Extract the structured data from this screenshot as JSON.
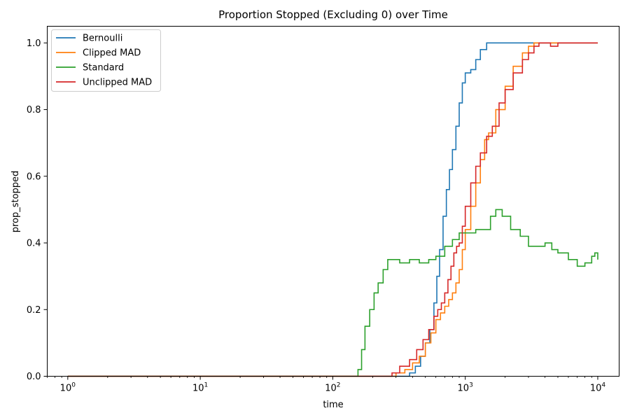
{
  "chart_data": {
    "type": "line",
    "title": "Proportion Stopped (Excluding 0) over Time",
    "xlabel": "time",
    "ylabel": "prop_stopped",
    "xscale": "log",
    "xlim": [
      0.7,
      14500
    ],
    "ylim": [
      0,
      1.05
    ],
    "x_ticks": [
      {
        "value": 1,
        "base": "10",
        "exp": "0"
      },
      {
        "value": 10,
        "base": "10",
        "exp": "1"
      },
      {
        "value": 100,
        "base": "10",
        "exp": "2"
      },
      {
        "value": 1000,
        "base": "10",
        "exp": "3"
      },
      {
        "value": 10000,
        "base": "10",
        "exp": "4"
      }
    ],
    "y_ticks": [
      "0.0",
      "0.2",
      "0.4",
      "0.6",
      "0.8",
      "1.0"
    ],
    "grid": false,
    "legend_position": "upper-left",
    "series": [
      {
        "name": "Bernoulli",
        "color": "#1f77b4",
        "points": [
          [
            1,
            0
          ],
          [
            350,
            0
          ],
          [
            380,
            0.01
          ],
          [
            420,
            0.03
          ],
          [
            460,
            0.06
          ],
          [
            500,
            0.1
          ],
          [
            540,
            0.14
          ],
          [
            580,
            0.22
          ],
          [
            610,
            0.3
          ],
          [
            640,
            0.38
          ],
          [
            680,
            0.48
          ],
          [
            720,
            0.56
          ],
          [
            760,
            0.62
          ],
          [
            800,
            0.68
          ],
          [
            850,
            0.75
          ],
          [
            900,
            0.82
          ],
          [
            950,
            0.88
          ],
          [
            1000,
            0.91
          ],
          [
            1100,
            0.92
          ],
          [
            1200,
            0.95
          ],
          [
            1300,
            0.98
          ],
          [
            1450,
            1.0
          ],
          [
            10000,
            1.0
          ]
        ]
      },
      {
        "name": "Clipped MAD",
        "color": "#ff7f0e",
        "points": [
          [
            1,
            0
          ],
          [
            270,
            0
          ],
          [
            300,
            0.01
          ],
          [
            350,
            0.02
          ],
          [
            400,
            0.04
          ],
          [
            450,
            0.06
          ],
          [
            500,
            0.1
          ],
          [
            550,
            0.13
          ],
          [
            600,
            0.17
          ],
          [
            650,
            0.19
          ],
          [
            700,
            0.21
          ],
          [
            750,
            0.23
          ],
          [
            800,
            0.25
          ],
          [
            850,
            0.28
          ],
          [
            900,
            0.32
          ],
          [
            950,
            0.38
          ],
          [
            1000,
            0.44
          ],
          [
            1100,
            0.51
          ],
          [
            1200,
            0.58
          ],
          [
            1300,
            0.65
          ],
          [
            1400,
            0.71
          ],
          [
            1500,
            0.73
          ],
          [
            1700,
            0.8
          ],
          [
            2000,
            0.87
          ],
          [
            2300,
            0.93
          ],
          [
            2700,
            0.97
          ],
          [
            3000,
            0.99
          ],
          [
            3300,
            1.0
          ],
          [
            10000,
            1.0
          ]
        ]
      },
      {
        "name": "Standard",
        "color": "#2ca02c",
        "points": [
          [
            1,
            0
          ],
          [
            150,
            0
          ],
          [
            155,
            0.02
          ],
          [
            165,
            0.08
          ],
          [
            175,
            0.15
          ],
          [
            190,
            0.2
          ],
          [
            205,
            0.25
          ],
          [
            220,
            0.28
          ],
          [
            240,
            0.32
          ],
          [
            260,
            0.35
          ],
          [
            290,
            0.35
          ],
          [
            320,
            0.34
          ],
          [
            380,
            0.35
          ],
          [
            450,
            0.34
          ],
          [
            530,
            0.35
          ],
          [
            600,
            0.36
          ],
          [
            700,
            0.39
          ],
          [
            800,
            0.41
          ],
          [
            900,
            0.43
          ],
          [
            1000,
            0.43
          ],
          [
            1200,
            0.44
          ],
          [
            1400,
            0.44
          ],
          [
            1550,
            0.48
          ],
          [
            1700,
            0.5
          ],
          [
            1900,
            0.48
          ],
          [
            2200,
            0.44
          ],
          [
            2600,
            0.42
          ],
          [
            3000,
            0.39
          ],
          [
            3500,
            0.39
          ],
          [
            4000,
            0.4
          ],
          [
            4500,
            0.38
          ],
          [
            5000,
            0.37
          ],
          [
            6000,
            0.35
          ],
          [
            7000,
            0.33
          ],
          [
            8000,
            0.34
          ],
          [
            9000,
            0.36
          ],
          [
            9500,
            0.37
          ],
          [
            10000,
            0.35
          ]
        ]
      },
      {
        "name": "Unclipped MAD",
        "color": "#d62728",
        "points": [
          [
            1,
            0
          ],
          [
            250,
            0
          ],
          [
            280,
            0.01
          ],
          [
            320,
            0.03
          ],
          [
            380,
            0.05
          ],
          [
            430,
            0.08
          ],
          [
            480,
            0.11
          ],
          [
            530,
            0.14
          ],
          [
            580,
            0.18
          ],
          [
            620,
            0.2
          ],
          [
            660,
            0.22
          ],
          [
            700,
            0.25
          ],
          [
            740,
            0.29
          ],
          [
            780,
            0.33
          ],
          [
            820,
            0.37
          ],
          [
            860,
            0.39
          ],
          [
            900,
            0.4
          ],
          [
            950,
            0.45
          ],
          [
            1000,
            0.51
          ],
          [
            1100,
            0.58
          ],
          [
            1200,
            0.63
          ],
          [
            1300,
            0.67
          ],
          [
            1450,
            0.72
          ],
          [
            1600,
            0.75
          ],
          [
            1800,
            0.82
          ],
          [
            2000,
            0.86
          ],
          [
            2300,
            0.91
          ],
          [
            2700,
            0.95
          ],
          [
            3000,
            0.97
          ],
          [
            3300,
            0.99
          ],
          [
            3600,
            1.0
          ],
          [
            4200,
            1.0
          ],
          [
            4400,
            0.99
          ],
          [
            5000,
            1.0
          ],
          [
            10000,
            1.0
          ]
        ]
      }
    ]
  }
}
